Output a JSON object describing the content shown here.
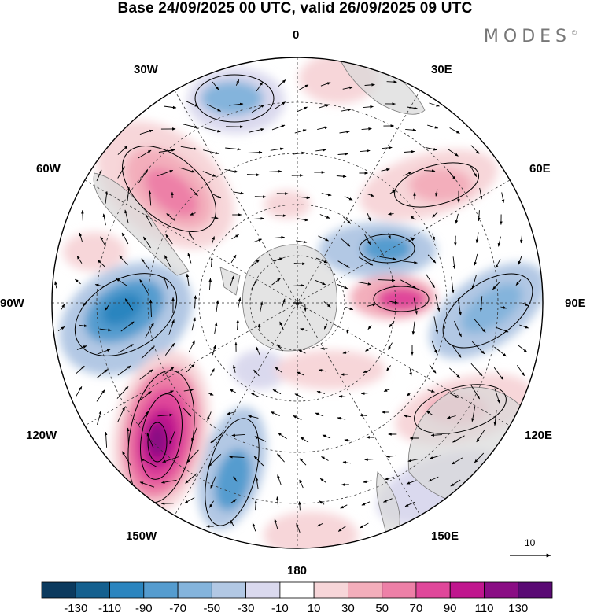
{
  "title": "Base 24/09/2025 00 UTC, valid 26/09/2025 09 UTC",
  "brand": {
    "name": "MODES",
    "mark": "©"
  },
  "lon_labels": {
    "lon_0": "0",
    "lon_30E": "30E",
    "lon_60E": "60E",
    "lon_90E": "90E",
    "lon_120E": "120E",
    "lon_150E": "150E",
    "lon_180": "180",
    "lon_150W": "150W",
    "lon_120W": "120W",
    "lon_90W": "90W",
    "lon_60W": "60W",
    "lon_30W": "30W"
  },
  "vector_scale": {
    "label": "10"
  },
  "colorbar": {
    "colors": [
      "#0b3a5e",
      "#14608f",
      "#2b85bf",
      "#559ccf",
      "#84b4dc",
      "#b2c8e4",
      "#dad9ee",
      "#ffffff",
      "#f7d6d9",
      "#f3aebb",
      "#ed80a7",
      "#e0479a",
      "#c0168e",
      "#8a0d84",
      "#5a0a74"
    ],
    "labels": [
      "-130",
      "-110",
      "-90",
      "-70",
      "-50",
      "-30",
      "-10",
      "10",
      "30",
      "50",
      "70",
      "90",
      "110",
      "130"
    ]
  },
  "anomaly_centers": [
    {
      "region": "south-atlantic-west",
      "value": -30
    },
    {
      "region": "south-america-west",
      "value": 50
    },
    {
      "region": "east-pacific-90w",
      "value": -70
    },
    {
      "region": "south-pacific-135w",
      "value": 120
    },
    {
      "region": "south-pacific-165w",
      "value": -60
    },
    {
      "region": "indian-ocean-60e",
      "value": 30
    },
    {
      "region": "southern-ocean-80e",
      "value": -60
    },
    {
      "region": "southern-ocean-90e",
      "value": 70
    },
    {
      "region": "indian-ocean-100e",
      "value": -50
    },
    {
      "region": "australia-115e",
      "value": 50
    }
  ]
}
